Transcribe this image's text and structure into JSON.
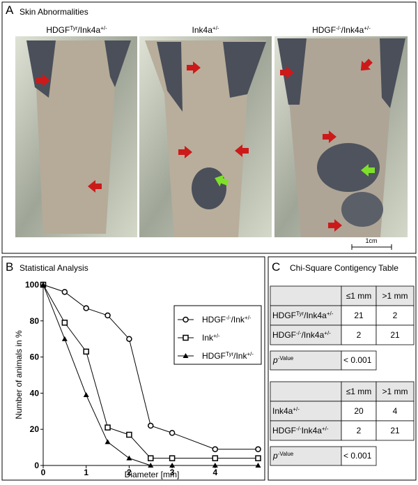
{
  "panel_a": {
    "label": "A",
    "title": "Skin Abnormalities",
    "photos": [
      {
        "title": [
          "HDGF",
          "Tyr",
          "/Ink4a",
          "+/-"
        ]
      },
      {
        "title": [
          "Ink4a",
          "+/-"
        ]
      },
      {
        "title": [
          "HDGF",
          "-/-",
          "/Ink4a",
          "+/-"
        ]
      }
    ],
    "scale_bar": "1cm"
  },
  "panel_b": {
    "label": "B",
    "title": "Statistical Analysis"
  },
  "chart_data": {
    "type": "line",
    "x_label": "Diameter [mm]",
    "y_label": "Number of animals in %",
    "x": [
      0,
      0.5,
      1,
      1.5,
      2,
      2.5,
      3,
      4,
      5
    ],
    "xlim": [
      0,
      5
    ],
    "ylim": [
      0,
      100
    ],
    "xticks": [
      0,
      1,
      2,
      3,
      4
    ],
    "yticks": [
      0,
      20,
      40,
      60,
      80,
      100
    ],
    "series": [
      {
        "name": [
          "HDGF",
          "-/-",
          "/Ink",
          "+/-"
        ],
        "marker": "circle",
        "color": "#000000",
        "values": [
          100,
          96,
          87,
          83,
          70,
          22,
          18,
          9,
          9
        ]
      },
      {
        "name": [
          "Ink",
          "+/-"
        ],
        "marker": "square",
        "color": "#000000",
        "values": [
          100,
          79,
          63,
          21,
          17,
          4,
          4,
          4,
          4
        ]
      },
      {
        "name": [
          "HDGF",
          "Tyr",
          "/Ink",
          "+/-"
        ],
        "marker": "triangle",
        "color": "#000000",
        "values": [
          100,
          70,
          39,
          13,
          4,
          0,
          0,
          0,
          0
        ]
      }
    ]
  },
  "panel_c": {
    "label": "C",
    "title": "Chi-Square Contigency Table",
    "tables": [
      {
        "header": [
          "≤1 mm",
          ">1 mm"
        ],
        "rows": [
          {
            "label": [
              "HDGF",
              "Tyr",
              "/Ink4a",
              "+/-"
            ],
            "values": [
              21,
              2
            ]
          },
          {
            "label": [
              "HDGF",
              "-/-",
              "/Ink4a",
              "+/-"
            ],
            "values": [
              2,
              21
            ]
          }
        ],
        "p_value": {
          "label": [
            "p",
            "-Value"
          ],
          "value": "< 0.001"
        }
      },
      {
        "header": [
          "≤1 mm",
          ">1 mm"
        ],
        "rows": [
          {
            "label": [
              "Ink4a",
              "+/-"
            ],
            "values": [
              20,
              4
            ]
          },
          {
            "label": [
              "HDGF",
              "-/-",
              "Ink4a",
              "+/-"
            ],
            "values": [
              2,
              21
            ]
          }
        ],
        "p_value": {
          "label": [
            "p",
            "-Value"
          ],
          "value": "< 0.001"
        }
      }
    ]
  }
}
